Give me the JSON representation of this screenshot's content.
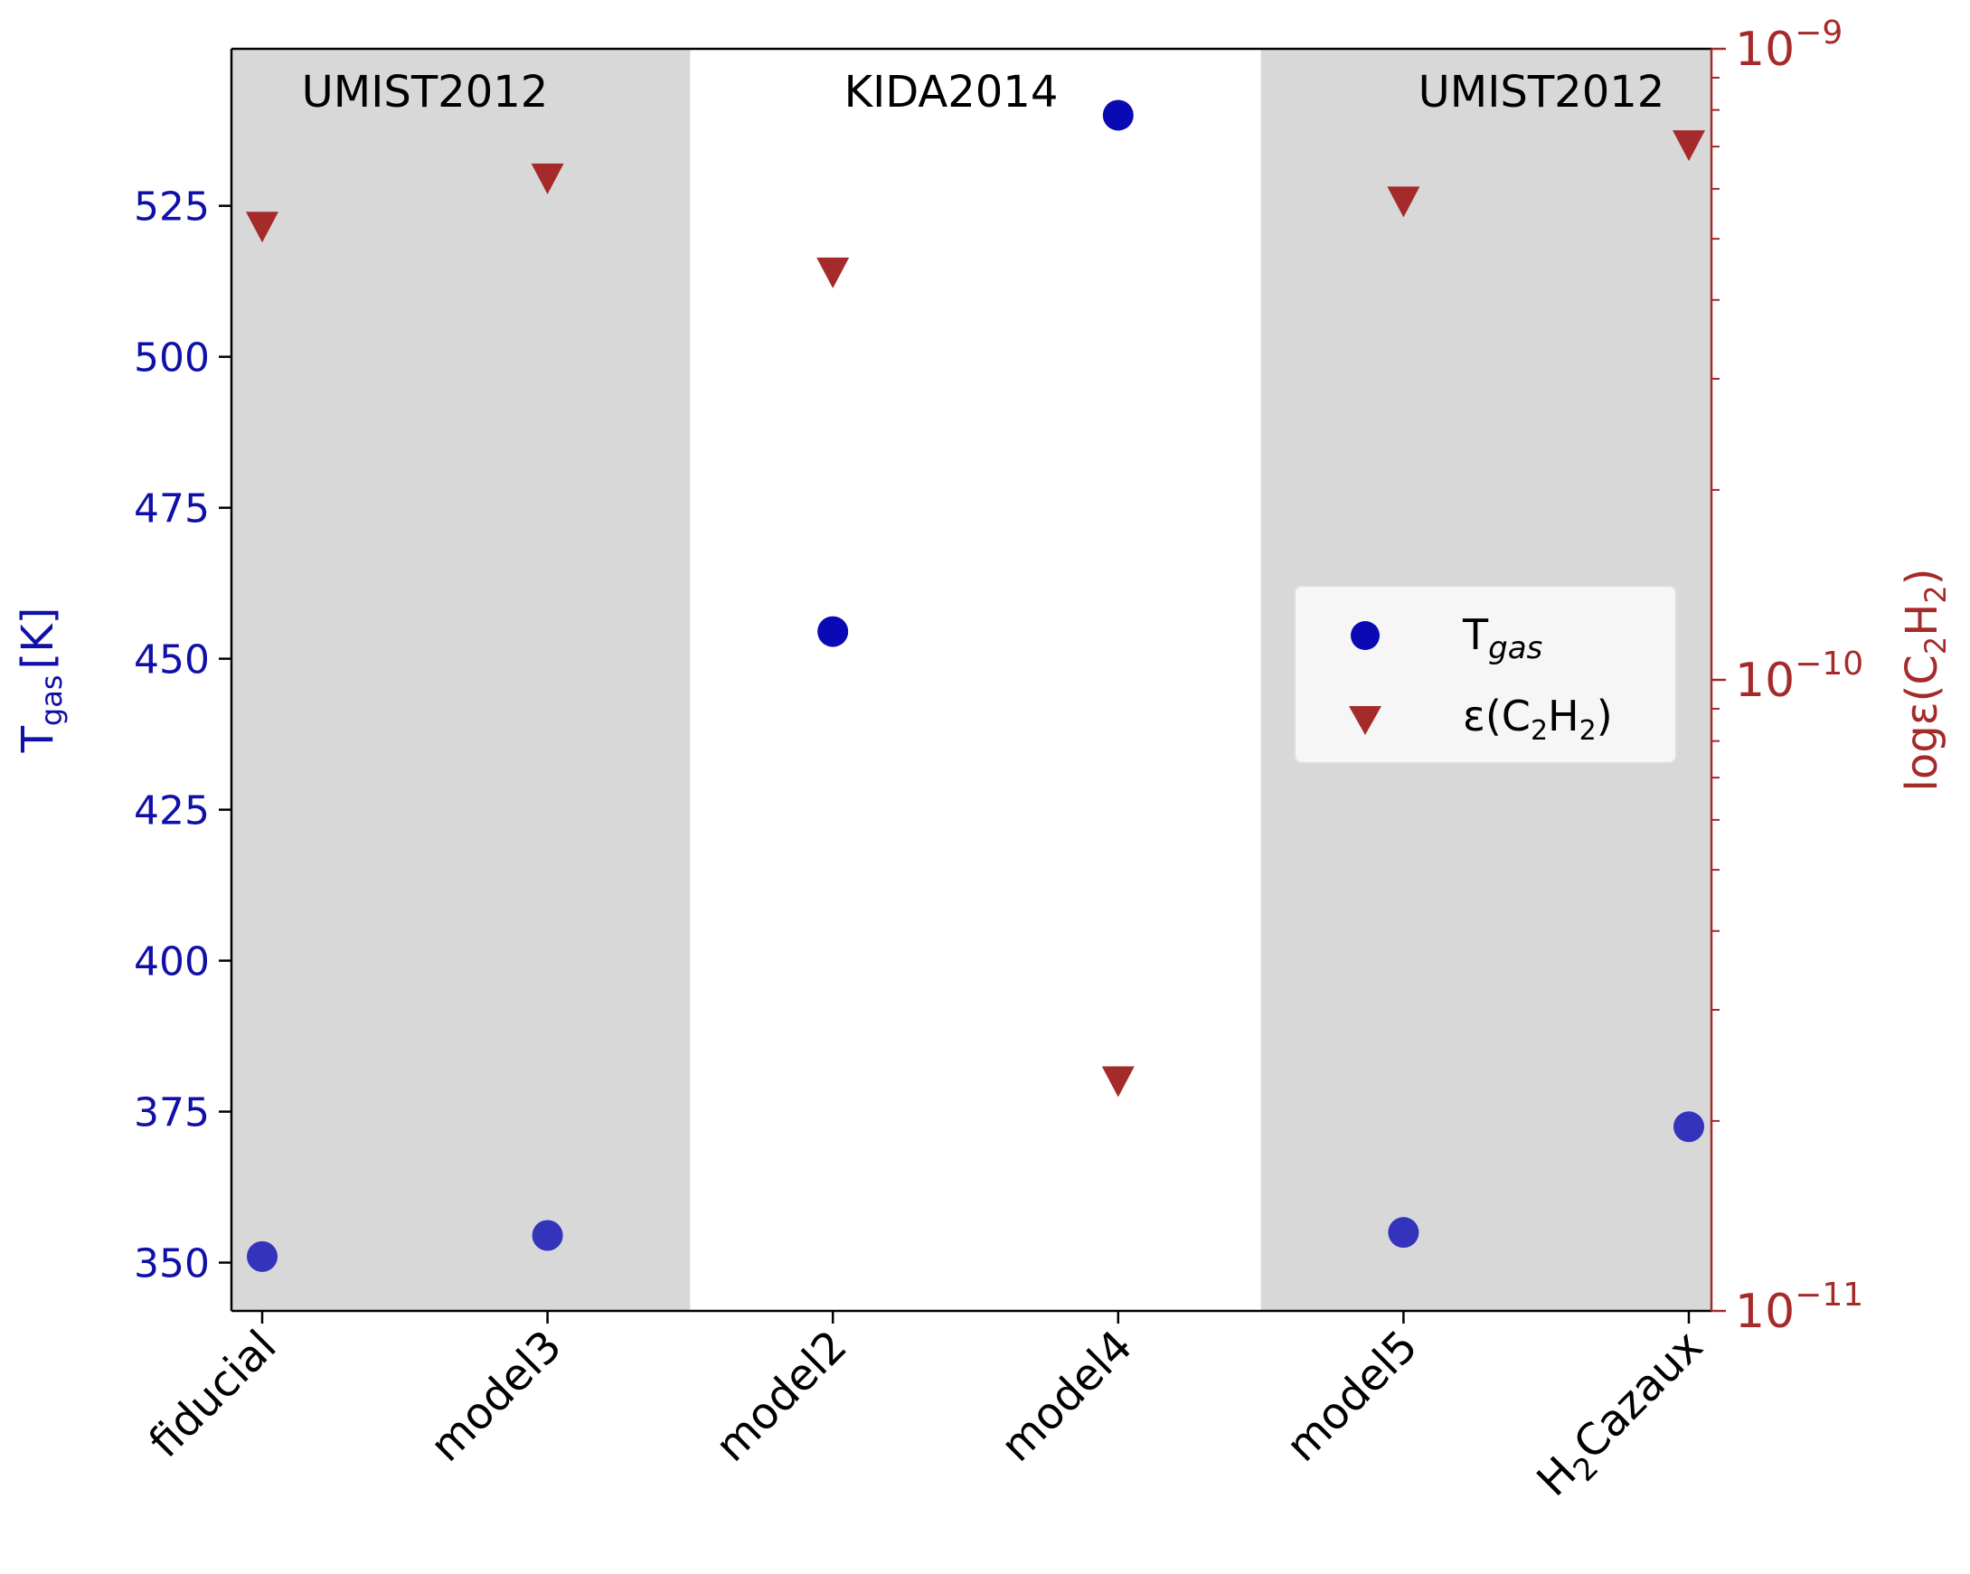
{
  "chart_data": {
    "type": "scatter",
    "categories": [
      "fiducial",
      "model3",
      "model2",
      "model4",
      "model5",
      "H2Cazaux"
    ],
    "category_labels": [
      {
        "main": "fiducial"
      },
      {
        "main": "model3"
      },
      {
        "main": "model2"
      },
      {
        "main": "model4"
      },
      {
        "main": "model5"
      },
      {
        "pre": "H",
        "sub": "2",
        "post": "Cazaux"
      }
    ],
    "regions": [
      {
        "label": "UMIST2012",
        "from": "fiducial",
        "to": "model3",
        "shaded": true
      },
      {
        "label": "KIDA2014",
        "from": "model2",
        "to": "model4",
        "shaded": false
      },
      {
        "label": "UMIST2012",
        "from": "model5",
        "to": "H2Cazaux",
        "shaded": true
      }
    ],
    "series": [
      {
        "name": "T_gas",
        "axis": "left",
        "marker": "circle",
        "color": "#0a0ab4",
        "values": [
          351,
          354.5,
          454.5,
          540,
          355,
          372.5
        ]
      },
      {
        "name": "epsilon(C2H2)",
        "axis": "right",
        "marker": "triangle-down",
        "color": "#a52a2a",
        "values": [
          5.2e-10,
          6.2e-10,
          4.4e-10,
          2.3e-11,
          5.7e-10,
          7e-10
        ]
      }
    ],
    "y_left": {
      "ylim": [
        342,
        551
      ],
      "ticks": [
        350,
        375,
        400,
        425,
        450,
        475,
        500,
        525
      ],
      "label_main": "T",
      "label_sub": "gas",
      "label_unit": "[K]",
      "color": "#1010a8"
    },
    "y_right": {
      "scale": "log",
      "ylim": [
        1e-11,
        1e-09
      ],
      "major_ticks": [
        {
          "value": 1e-11,
          "base": "10",
          "exp": "−11"
        },
        {
          "value": 1e-10,
          "base": "10",
          "exp": "−10"
        },
        {
          "value": 1e-09,
          "base": "10",
          "exp": "−9"
        }
      ],
      "label_pre": "logε(C",
      "label_sub1": "2",
      "label_mid": "H",
      "label_sub2": "2",
      "label_post": ")",
      "color": "#a52a2a"
    },
    "legend": {
      "position": "center-right",
      "entries": [
        {
          "main": "T",
          "sub": "gas"
        },
        {
          "pre": "ε(C",
          "sub1": "2",
          "mid": "H",
          "sub2": "2",
          "post": ")"
        }
      ]
    },
    "shade_color": "#d8d8d8"
  }
}
